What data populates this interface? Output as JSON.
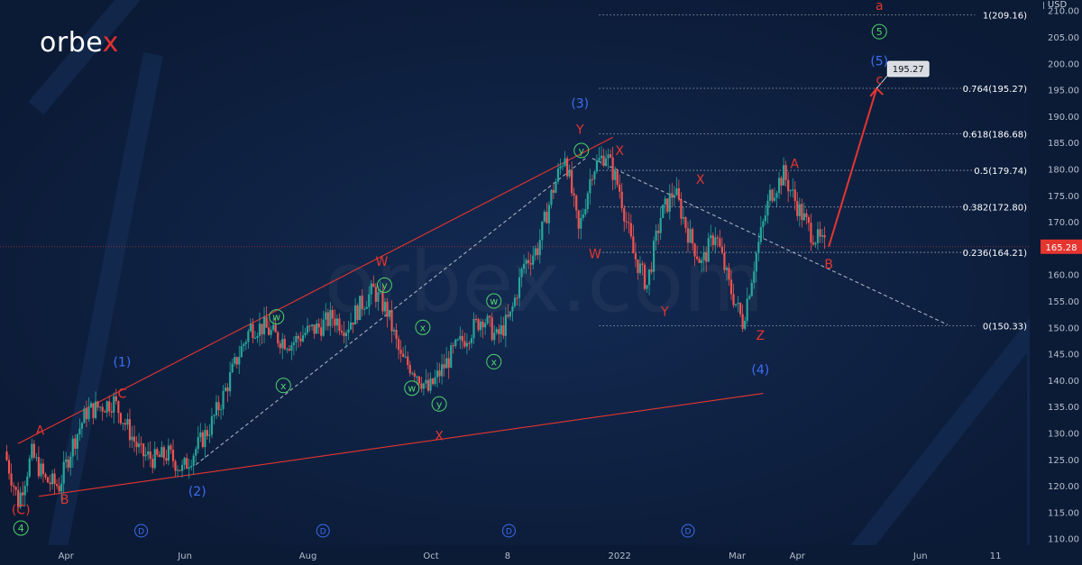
{
  "brand": {
    "logo_main": "orbe",
    "logo_x": "x",
    "watermark": "orbex.com"
  },
  "currency": "USD",
  "colors": {
    "background": "#0b1a35",
    "up": "#26a69a",
    "down": "#ef5350",
    "wave_red": "#e5352f",
    "wave_blue": "#3d6df2",
    "wave_green": "#4fd36a",
    "price_tag": "#e5352f"
  },
  "chart_data": {
    "type": "candlestick",
    "ylim": [
      105,
      212
    ],
    "yticks": [
      110,
      115,
      120,
      125,
      130,
      135,
      140,
      145,
      150,
      155,
      160,
      165,
      170,
      175,
      180,
      185,
      190,
      195,
      200,
      205,
      210
    ],
    "xticks": [
      {
        "label": "Apr",
        "x": 4.5
      },
      {
        "label": "Jun",
        "x": 13.2
      },
      {
        "label": "Aug",
        "x": 22.2
      },
      {
        "label": "Oct",
        "x": 31.2
      },
      {
        "label": "8",
        "x": 36.8
      },
      {
        "label": "2022",
        "x": 45
      },
      {
        "label": "Mar",
        "x": 53.6
      },
      {
        "label": "Apr",
        "x": 58
      },
      {
        "label": "Jun",
        "x": 67
      },
      {
        "label": "11",
        "x": 72.5
      }
    ],
    "xlim": [
      0,
      75
    ],
    "price_path": [
      [
        0,
        126.5
      ],
      [
        1,
        117
      ],
      [
        2,
        126
      ],
      [
        3,
        121
      ],
      [
        4,
        120
      ],
      [
        5,
        128
      ],
      [
        6,
        134
      ],
      [
        7,
        135
      ],
      [
        8,
        136
      ],
      [
        9,
        131
      ],
      [
        10,
        126
      ],
      [
        11,
        125
      ],
      [
        12,
        126
      ],
      [
        13,
        123
      ],
      [
        14,
        127
      ],
      [
        15,
        131
      ],
      [
        16,
        137
      ],
      [
        17,
        144
      ],
      [
        18,
        150
      ],
      [
        19,
        150
      ],
      [
        20,
        148
      ],
      [
        21,
        147
      ],
      [
        22,
        149
      ],
      [
        23,
        150
      ],
      [
        24,
        152
      ],
      [
        25,
        150
      ],
      [
        26,
        154
      ],
      [
        27,
        157
      ],
      [
        28,
        153
      ],
      [
        29,
        144
      ],
      [
        30,
        142
      ],
      [
        31,
        138
      ],
      [
        32,
        142
      ],
      [
        33,
        146
      ],
      [
        34,
        149
      ],
      [
        35,
        152
      ],
      [
        36,
        148
      ],
      [
        37,
        152
      ],
      [
        38,
        162
      ],
      [
        39,
        165
      ],
      [
        40,
        175
      ],
      [
        41,
        183
      ],
      [
        42,
        168
      ],
      [
        43,
        180
      ],
      [
        44,
        183
      ],
      [
        45,
        176
      ],
      [
        46,
        164
      ],
      [
        47,
        158
      ],
      [
        48,
        171
      ],
      [
        49,
        176
      ],
      [
        50,
        168
      ],
      [
        51,
        162
      ],
      [
        52,
        168
      ],
      [
        53,
        158
      ],
      [
        54,
        151
      ],
      [
        55,
        164
      ],
      [
        56,
        175
      ],
      [
        57,
        179
      ],
      [
        58,
        173
      ],
      [
        59,
        168
      ],
      [
        60,
        165.3
      ]
    ],
    "last_price": 165.28,
    "fib_levels": [
      {
        "label": "1(209.16)",
        "value": 209.16
      },
      {
        "label": "0.764(195.27)",
        "value": 195.27
      },
      {
        "label": "0.618(186.68)",
        "value": 186.68
      },
      {
        "label": "0.5(179.74)",
        "value": 179.74
      },
      {
        "label": "0.382(172.80)",
        "value": 172.8
      },
      {
        "label": "0.236(164.21)",
        "value": 164.21
      },
      {
        "label": "0(150.33)",
        "value": 150.33
      }
    ],
    "target_label": "195.27",
    "projection": [
      [
        60.3,
        165.3
      ],
      [
        63.8,
        195.27
      ]
    ],
    "trendlines": [
      {
        "style": "solid",
        "color": "red",
        "points": [
          [
            1,
            128
          ],
          [
            44.5,
            186
          ]
        ]
      },
      {
        "style": "solid",
        "color": "red",
        "points": [
          [
            2.5,
            118
          ],
          [
            55.5,
            137.5
          ]
        ]
      },
      {
        "style": "dashed",
        "color": "white",
        "points": [
          [
            14,
            124
          ],
          [
            42.5,
            182
          ]
        ]
      },
      {
        "style": "dashed",
        "color": "white",
        "points": [
          [
            43,
            182
          ],
          [
            69,
            150.5
          ]
        ]
      }
    ],
    "wave_labels": [
      {
        "text": "(C)",
        "x": 1.2,
        "y": 115.5,
        "color": "red"
      },
      {
        "text": "A",
        "x": 2.6,
        "y": 130.5,
        "color": "red"
      },
      {
        "text": "B",
        "x": 4.4,
        "y": 117.5,
        "color": "red"
      },
      {
        "text": "C",
        "x": 8.6,
        "y": 137.5,
        "color": "red"
      },
      {
        "text": "(1)",
        "x": 8.6,
        "y": 143.5,
        "color": "blue"
      },
      {
        "text": "(2)",
        "x": 14.1,
        "y": 119,
        "color": "blue"
      },
      {
        "text": "W",
        "x": 27.6,
        "y": 162.5,
        "color": "red"
      },
      {
        "text": "X",
        "x": 31.8,
        "y": 129.5,
        "color": "red"
      },
      {
        "text": "(3)",
        "x": 42.1,
        "y": 192.5,
        "color": "blue"
      },
      {
        "text": "Y",
        "x": 42.1,
        "y": 187.5,
        "color": "red"
      },
      {
        "text": "X",
        "x": 45,
        "y": 183.5,
        "color": "red"
      },
      {
        "text": "W",
        "x": 43.2,
        "y": 164,
        "color": "red"
      },
      {
        "text": "Y",
        "x": 48.3,
        "y": 153,
        "color": "red"
      },
      {
        "text": "X",
        "x": 50.9,
        "y": 178,
        "color": "red"
      },
      {
        "text": "Z",
        "x": 55.3,
        "y": 148.5,
        "color": "red"
      },
      {
        "text": "(4)",
        "x": 55.3,
        "y": 142,
        "color": "blue"
      },
      {
        "text": "A",
        "x": 57.8,
        "y": 181,
        "color": "red"
      },
      {
        "text": "B",
        "x": 60.3,
        "y": 162,
        "color": "red"
      },
      {
        "text": "a",
        "x": 64,
        "y": 211,
        "color": "red"
      },
      {
        "text": "(5)",
        "x": 64,
        "y": 200.5,
        "color": "blue"
      },
      {
        "text": "c",
        "x": 64,
        "y": 197,
        "color": "red"
      }
    ],
    "circle_labels": [
      {
        "text": "4",
        "x": 1.2,
        "y": 112
      },
      {
        "text": "w",
        "x": 19.9,
        "y": 152
      },
      {
        "text": "x",
        "x": 20.4,
        "y": 139
      },
      {
        "text": "y",
        "x": 27.8,
        "y": 158
      },
      {
        "text": "x",
        "x": 30.6,
        "y": 150
      },
      {
        "text": "w",
        "x": 29.8,
        "y": 138.5
      },
      {
        "text": "y",
        "x": 31.8,
        "y": 135.5
      },
      {
        "text": "w",
        "x": 35.8,
        "y": 155
      },
      {
        "text": "x",
        "x": 35.8,
        "y": 143.5
      },
      {
        "text": "y",
        "x": 42.2,
        "y": 183.5
      },
      {
        "text": "5",
        "x": 64,
        "y": 206
      }
    ],
    "cycle_markers": [
      {
        "text": "D",
        "x": 10
      },
      {
        "text": "D",
        "x": 23.3
      },
      {
        "text": "D",
        "x": 36.9
      },
      {
        "text": "D",
        "x": 50
      }
    ]
  }
}
